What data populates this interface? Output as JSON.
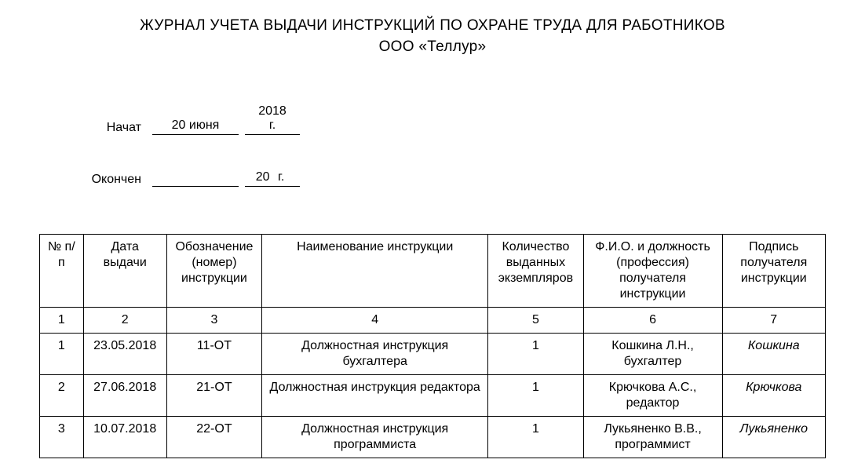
{
  "header": {
    "title_line1": "ЖУРНАЛ УЧЕТА ВЫДАЧИ ИНСТРУКЦИЙ ПО ОХРАНЕ ТРУДА ДЛЯ РАБОТНИКОВ",
    "title_line2": "ООО «Теллур»"
  },
  "meta": {
    "start_label": "Начат",
    "start_date": "20 июня",
    "start_year": "2018",
    "end_label": "Окончен",
    "end_date": "",
    "end_year": "20",
    "year_suffix": "г."
  },
  "table": {
    "columns": [
      "№ п/п",
      "Дата выдачи",
      "Обозначение (номер) инструкции",
      "Наименование инструкции",
      "Количество выданных экземпляров",
      "Ф.И.О. и должность (профессия) получателя инструкции",
      "Подпись получателя инструкции"
    ],
    "col_numbers": [
      "1",
      "2",
      "3",
      "4",
      "5",
      "6",
      "7"
    ],
    "rows": [
      {
        "num": "1",
        "date": "23.05.2018",
        "code": "11-ОТ",
        "name": "Должностная инструкция бухгалтера",
        "qty": "1",
        "recipient": "Кошкина Л.Н., бухгалтер",
        "signature": "Кошкина"
      },
      {
        "num": "2",
        "date": "27.06.2018",
        "code": "21-ОТ",
        "name": "Должностная инструкция редактора",
        "qty": "1",
        "recipient": "Крючкова А.С., редактор",
        "signature": "Крючкова"
      },
      {
        "num": "3",
        "date": "10.07.2018",
        "code": "22-ОТ",
        "name": "Должностная инструкция программиста",
        "qty": "1",
        "recipient": "Лукьяненко В.В., программист",
        "signature": "Лукьяненко"
      }
    ]
  },
  "styling": {
    "background_color": "#ffffff",
    "text_color": "#000000",
    "border_color": "#000000",
    "title_fontsize": 19,
    "body_fontsize": 16,
    "font_family": "Arial"
  }
}
